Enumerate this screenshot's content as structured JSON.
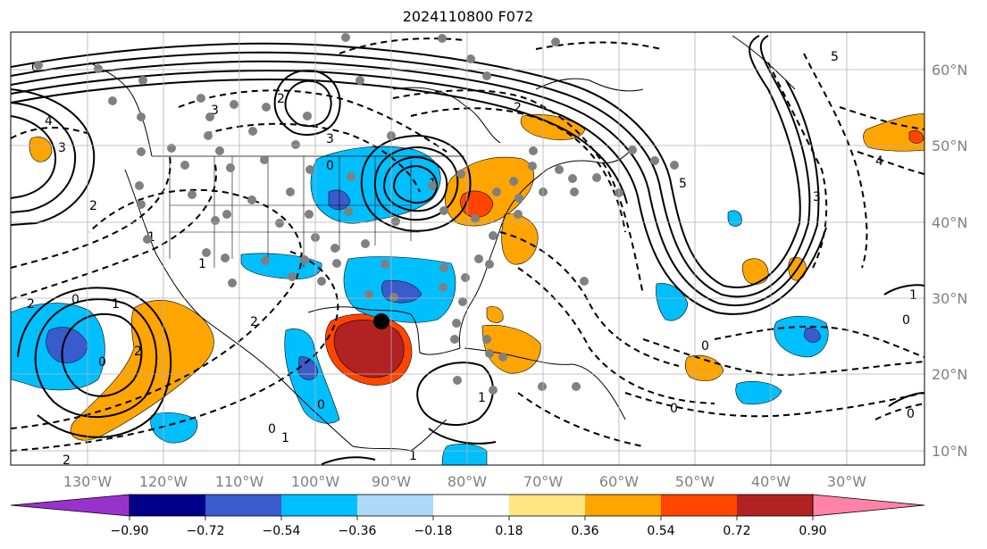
{
  "title": "2024110800 F072",
  "map": {
    "longitude_labels": [
      "130°W",
      "120°W",
      "110°W",
      "100°W",
      "90°W",
      "80°W",
      "70°W",
      "60°W",
      "50°W",
      "40°W",
      "30°W"
    ],
    "latitude_labels": [
      "60°N",
      "50°N",
      "40°N",
      "30°N",
      "20°N",
      "10°N"
    ],
    "contour_labels": [
      "0",
      "4",
      "3",
      "2",
      "2",
      "3",
      "0",
      "3",
      "1",
      "0",
      "2",
      "2",
      "1",
      "2",
      "0",
      "2",
      "0",
      "0",
      "1",
      "1",
      "0",
      "0",
      "0",
      "0",
      "1",
      "1",
      "5",
      "4",
      "3",
      "2",
      "1",
      "5",
      "1"
    ],
    "colors": {
      "positive_fill": "#ffa500",
      "strong_positive_fill": "#b22222",
      "negative_fill": "#00bfff",
      "strong_negative_fill": "#3a5bcc",
      "station_dot": "#808080",
      "storm_marker": "#000000"
    }
  },
  "colorbar": {
    "tick_labels": [
      "−0.90",
      "−0.72",
      "−0.54",
      "−0.36",
      "−0.18",
      "0.18",
      "0.36",
      "0.54",
      "0.72",
      "0.90"
    ],
    "colors": [
      "#9932cc",
      "#00008b",
      "#3a5bcc",
      "#00bfff",
      "#add8f7",
      "#ffffff",
      "#ffe680",
      "#ffa500",
      "#ff4500",
      "#b22222",
      "#ff82ab"
    ]
  }
}
